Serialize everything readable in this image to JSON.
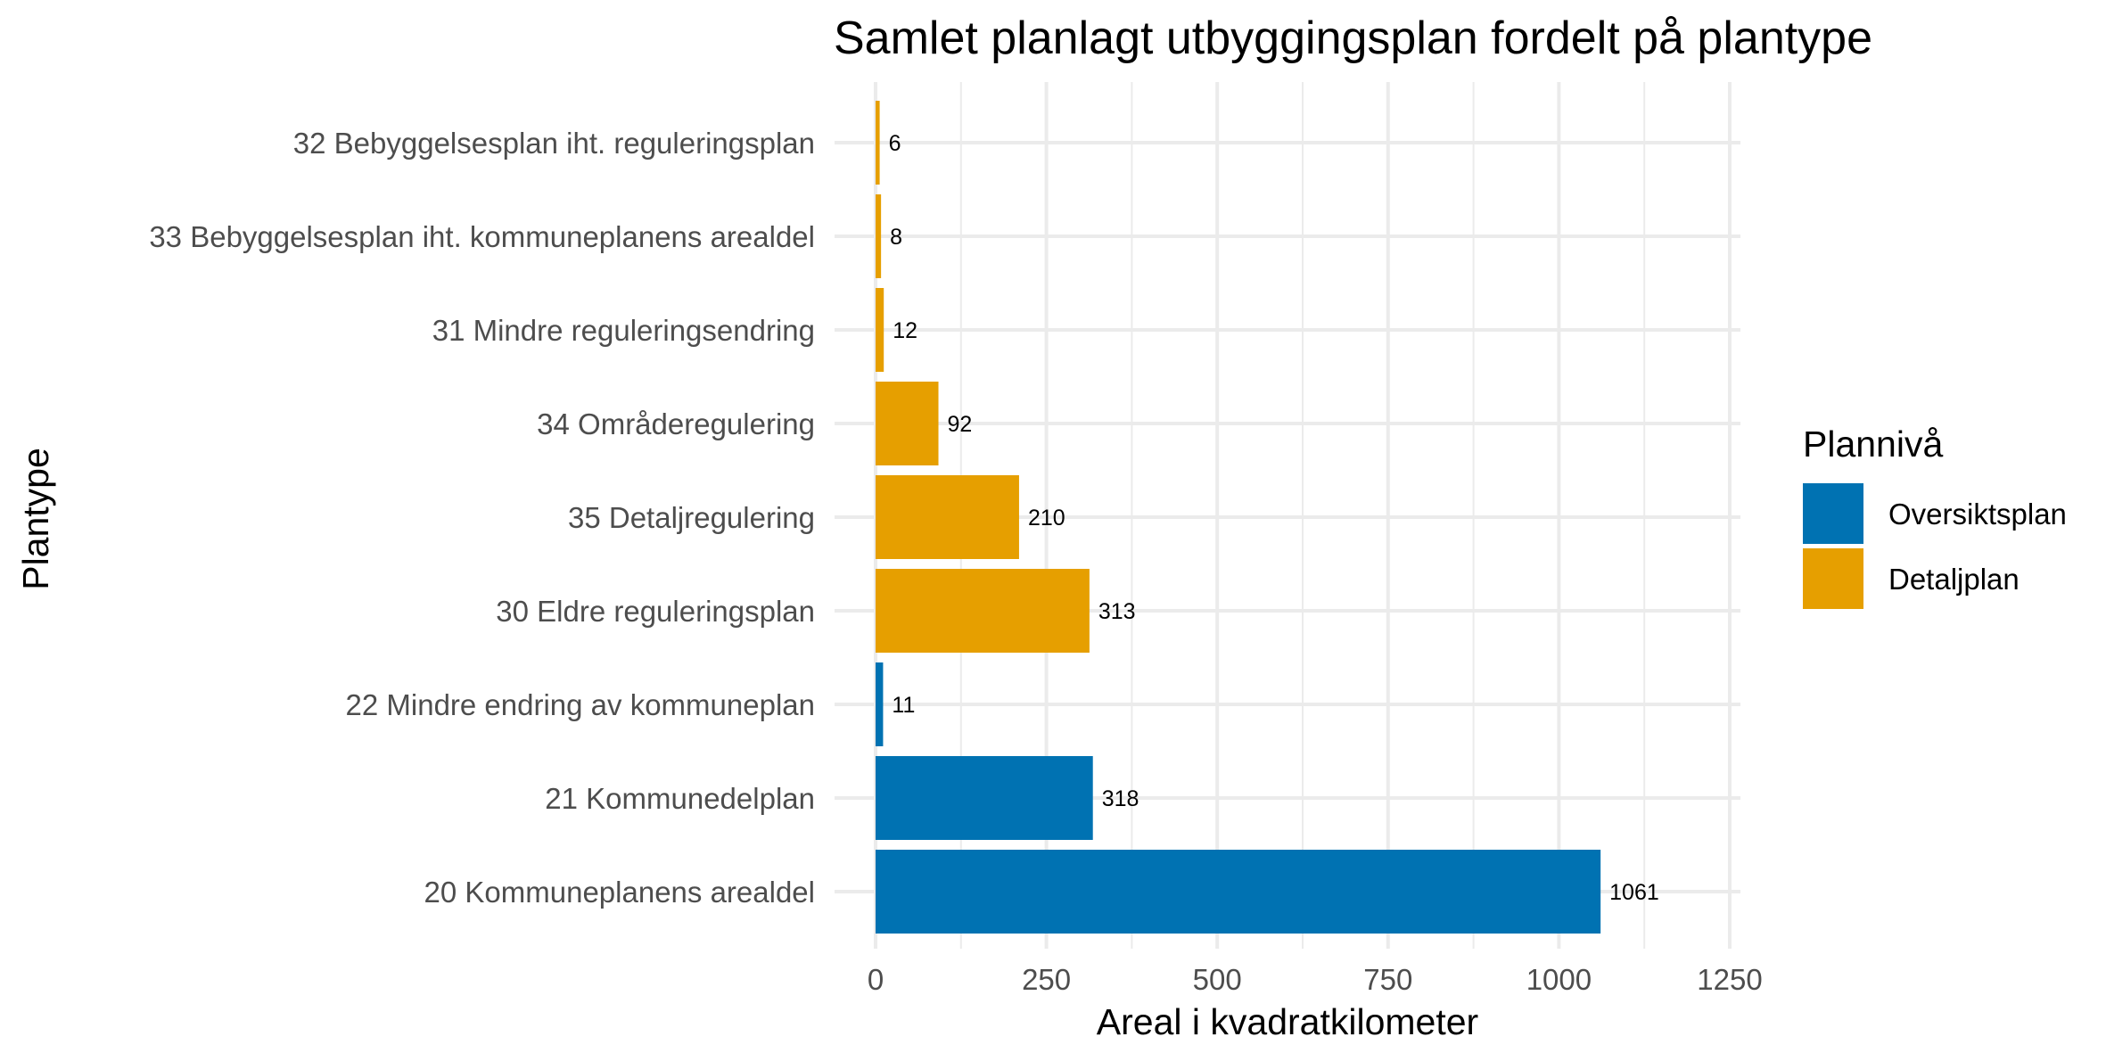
{
  "chart_data": {
    "type": "bar",
    "orientation": "horizontal",
    "title": "Samlet planlagt utbyggingsplan fordelt på plantype",
    "xlabel": "Areal i kvadratkilometer",
    "ylabel": "Plantype",
    "xlim": [
      0,
      1250
    ],
    "xticks": [
      0,
      250,
      500,
      750,
      1000,
      1250
    ],
    "xtick_labels": [
      "0",
      "250",
      "500",
      "750",
      "1000",
      "1250"
    ],
    "grid": true,
    "legend": {
      "title": "Plannivå",
      "placement": "right",
      "entries": [
        {
          "name": "Oversiktsplan",
          "color": "#0072B2"
        },
        {
          "name": "Detaljplan",
          "color": "#E69F00"
        }
      ]
    },
    "categories": [
      "32 Bebyggelsesplan iht. reguleringsplan",
      "33 Bebyggelsesplan iht. kommuneplanens arealdel",
      "31 Mindre reguleringsendring",
      "34 Områderegulering",
      "35 Detaljregulering",
      "30 Eldre reguleringsplan",
      "22 Mindre endring av kommuneplan",
      "21 Kommunedelplan",
      "20 Kommuneplanens arealdel"
    ],
    "values": [
      6,
      8,
      12,
      92,
      210,
      313,
      11,
      318,
      1061
    ],
    "value_labels": [
      "6",
      "8",
      "12",
      "92",
      "210",
      "313",
      "11",
      "318",
      "1061"
    ],
    "groups": [
      "Detaljplan",
      "Detaljplan",
      "Detaljplan",
      "Detaljplan",
      "Detaljplan",
      "Detaljplan",
      "Oversiktsplan",
      "Oversiktsplan",
      "Oversiktsplan"
    ]
  }
}
